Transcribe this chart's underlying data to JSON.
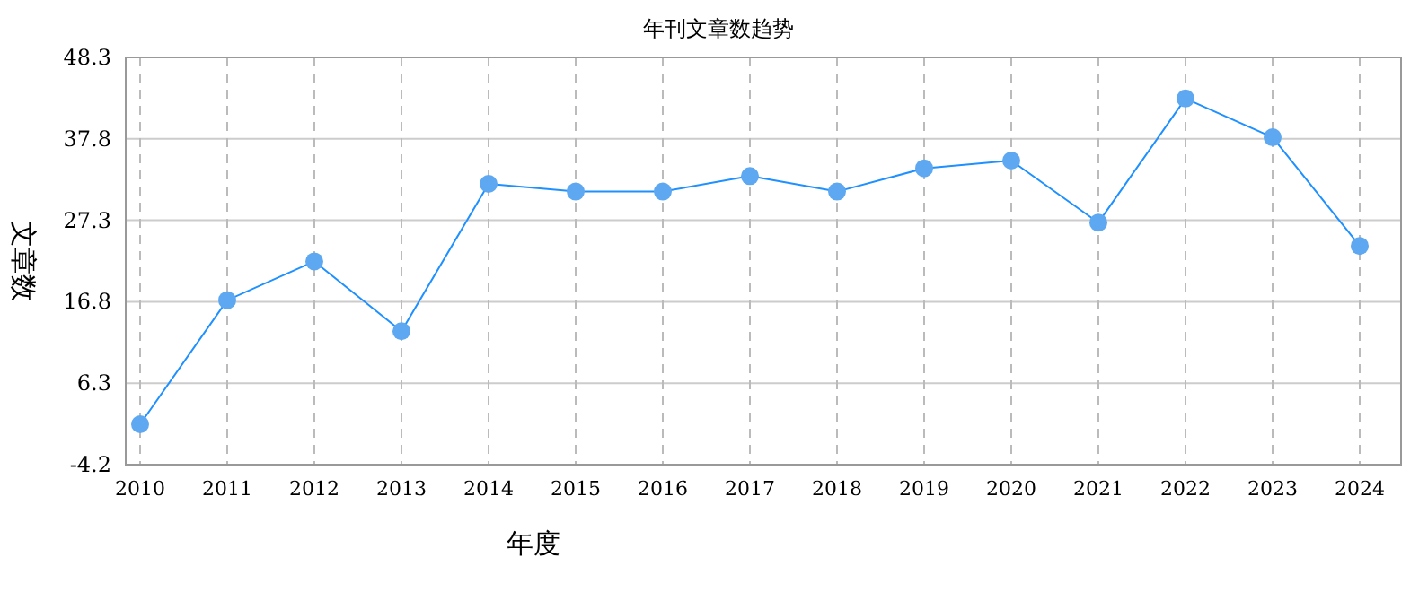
{
  "chart_data": {
    "type": "line",
    "title": "年刊文章数趋势",
    "xlabel": "年度",
    "ylabel": "文章数",
    "categories": [
      "2010",
      "2011",
      "2012",
      "2013",
      "2014",
      "2015",
      "2016",
      "2017",
      "2018",
      "2019",
      "2020",
      "2021",
      "2022",
      "2023",
      "2024"
    ],
    "series": [
      {
        "color": "#1e90ff",
        "values": [
          1,
          17,
          22,
          13,
          32,
          31,
          31,
          33,
          31,
          34,
          35,
          27,
          43,
          38,
          24
        ]
      }
    ],
    "ylim": [
      -4.2,
      48.3
    ],
    "yticks": [
      -4.2,
      6.3,
      16.8,
      27.3,
      37.8,
      48.3
    ],
    "grid": true,
    "marker": "circle",
    "line_style": "solid"
  }
}
